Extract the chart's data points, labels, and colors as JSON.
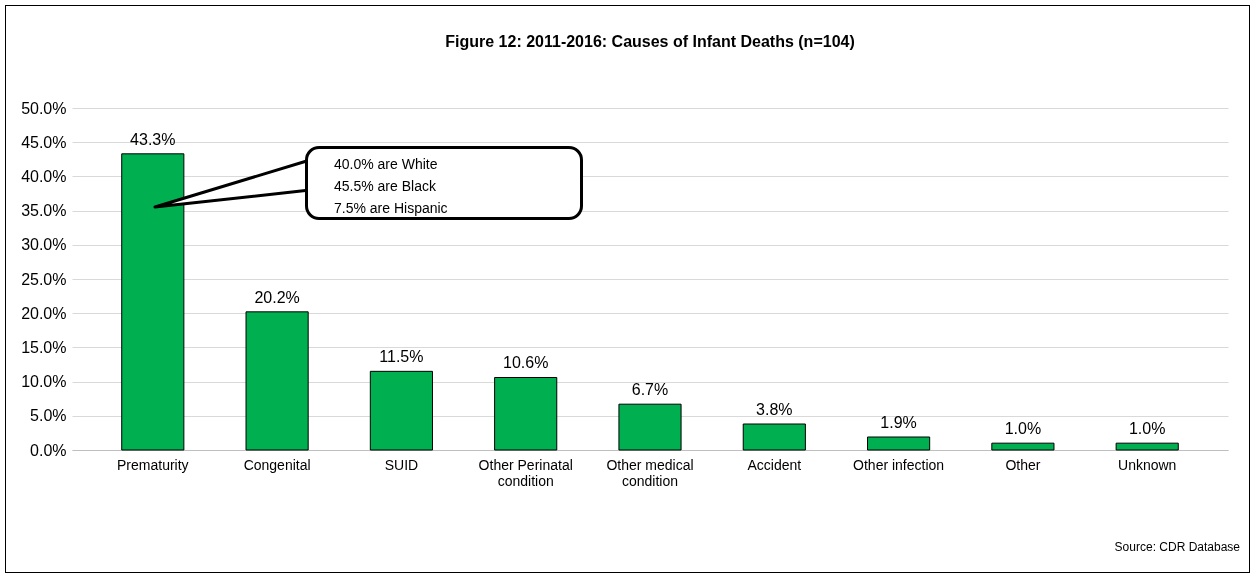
{
  "chart_data": {
    "type": "bar",
    "title": "Figure 12: 2011-2016: Causes of Infant Deaths (n=104)",
    "categories": [
      "Prematurity",
      "Congenital",
      "SUID",
      "Other Perinatal condition",
      "Other medical condition",
      "Accident",
      "Other infection",
      "Other",
      "Unknown"
    ],
    "values": [
      43.3,
      20.2,
      11.5,
      10.6,
      6.7,
      3.8,
      1.9,
      1.0,
      1.0
    ],
    "value_labels": [
      "43.3%",
      "20.2%",
      "11.5%",
      "10.6%",
      "6.7%",
      "3.8%",
      "1.9%",
      "1.0%",
      "1.0%"
    ],
    "color": "#00b050",
    "ylim": [
      0,
      50
    ],
    "yticks": [
      {
        "value": 0,
        "label": "0.0%"
      },
      {
        "value": 5,
        "label": "5.0%"
      },
      {
        "value": 10,
        "label": "10.0%"
      },
      {
        "value": 15,
        "label": "15.0%"
      },
      {
        "value": 20,
        "label": "20.0%"
      },
      {
        "value": 25,
        "label": "25.0%"
      },
      {
        "value": 30,
        "label": "30.0%"
      },
      {
        "value": 35,
        "label": "35.0%"
      },
      {
        "value": 40,
        "label": "40.0%"
      },
      {
        "value": 45,
        "label": "45.0%"
      },
      {
        "value": 50,
        "label": "50.0%"
      }
    ],
    "grid": "y",
    "annotations": [
      "40.0% are White\n45.5% are Black\n7.5% are Hispanic",
      "Source: CDR Database"
    ]
  }
}
